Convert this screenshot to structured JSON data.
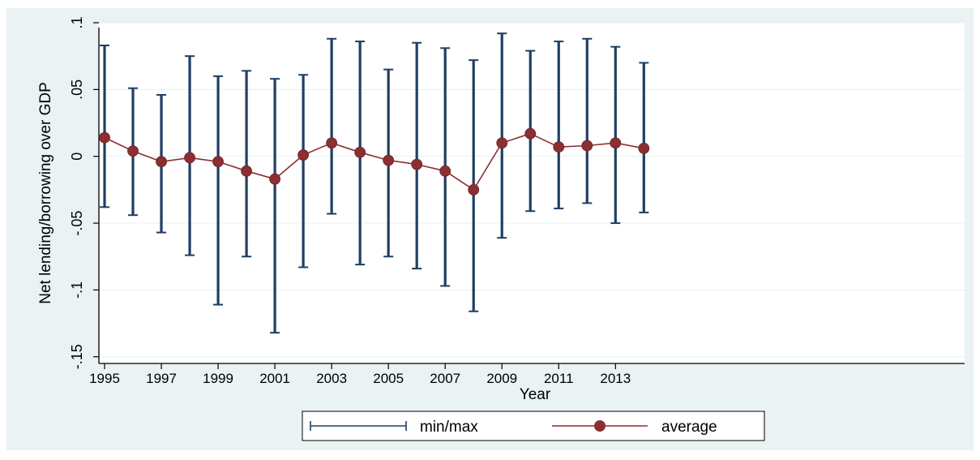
{
  "chart_data": {
    "type": "line",
    "title": "",
    "xlabel": "Year",
    "ylabel": "Net lending/borrowing over GDP",
    "xlim": [
      1994.8,
      2025.3
    ],
    "ylim": [
      -0.155,
      0.1
    ],
    "x_ticks": [
      1995,
      1997,
      1999,
      2001,
      2003,
      2005,
      2007,
      2009,
      2011,
      2013
    ],
    "x_tick_labels": [
      "1995",
      "1997",
      "1999",
      "2001",
      "2003",
      "2005",
      "2007",
      "2009",
      "2011",
      "2013"
    ],
    "y_ticks": [
      0.1,
      0.05,
      0,
      -0.05,
      -0.1,
      -0.15
    ],
    "y_tick_labels": [
      ".1",
      ".05",
      "0",
      "-.05",
      "-.1",
      "-.15"
    ],
    "grid": true,
    "legend_position": "bottom-center",
    "x": [
      1995,
      1996,
      1997,
      1998,
      1999,
      2000,
      2001,
      2002,
      2003,
      2004,
      2005,
      2006,
      2007,
      2008,
      2009,
      2010,
      2011,
      2012,
      2013,
      2014
    ],
    "series": [
      {
        "name": "min/max",
        "kind": "range",
        "color": "#1f3f63",
        "min": [
          -0.038,
          -0.044,
          -0.057,
          -0.074,
          -0.111,
          -0.075,
          -0.132,
          -0.083,
          -0.043,
          -0.081,
          -0.075,
          -0.084,
          -0.097,
          -0.116,
          -0.061,
          -0.041,
          -0.039,
          -0.035,
          -0.05,
          -0.042
        ],
        "max": [
          0.083,
          0.051,
          0.046,
          0.075,
          0.06,
          0.064,
          0.058,
          0.061,
          0.088,
          0.086,
          0.065,
          0.085,
          0.081,
          0.072,
          0.092,
          0.079,
          0.086,
          0.088,
          0.082,
          0.07
        ]
      },
      {
        "name": "average",
        "kind": "line-marker",
        "color": "#8b2f33",
        "values": [
          0.014,
          0.004,
          -0.004,
          -0.001,
          -0.004,
          -0.011,
          -0.017,
          0.001,
          0.01,
          0.003,
          -0.003,
          -0.006,
          -0.011,
          -0.025,
          0.01,
          0.017,
          0.007,
          0.008,
          0.01,
          0.006
        ]
      }
    ]
  }
}
